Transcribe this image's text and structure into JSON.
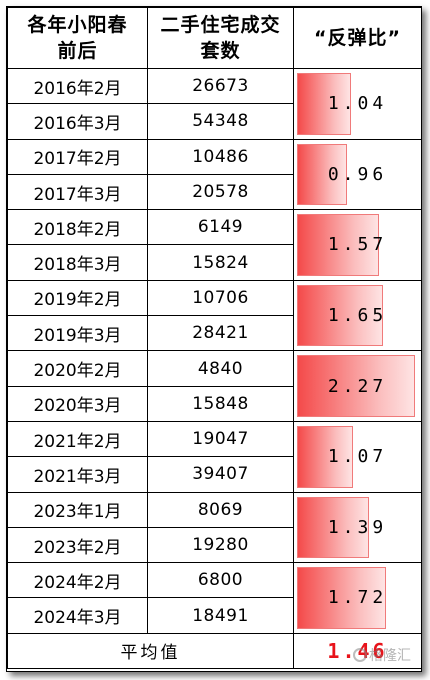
{
  "header": {
    "col1": "各年小阳春\n前后",
    "col2": "二手住宅成交\n套数",
    "col3": "“反弹比”"
  },
  "groups": [
    {
      "rows": [
        {
          "month": "2016年2月",
          "count": "26673"
        },
        {
          "month": "2016年3月",
          "count": "54348"
        }
      ],
      "ratio": "1.04",
      "ratio_value": 1.04
    },
    {
      "rows": [
        {
          "month": "2017年2月",
          "count": "10486"
        },
        {
          "month": "2017年3月",
          "count": "20578"
        }
      ],
      "ratio": "0.96",
      "ratio_value": 0.96
    },
    {
      "rows": [
        {
          "month": "2018年2月",
          "count": "6149"
        },
        {
          "month": "2018年3月",
          "count": "15824"
        }
      ],
      "ratio": "1.57",
      "ratio_value": 1.57
    },
    {
      "rows": [
        {
          "month": "2019年2月",
          "count": "10706"
        },
        {
          "month": "2019年3月",
          "count": "28421"
        }
      ],
      "ratio": "1.65",
      "ratio_value": 1.65
    },
    {
      "rows": [
        {
          "month": "2020年2月",
          "count": "4840"
        },
        {
          "month": "2020年3月",
          "count": "15848"
        }
      ],
      "ratio": "2.27",
      "ratio_value": 2.27
    },
    {
      "rows": [
        {
          "month": "2021年2月",
          "count": "19047"
        },
        {
          "month": "2021年3月",
          "count": "39407"
        }
      ],
      "ratio": "1.07",
      "ratio_value": 1.07
    },
    {
      "rows": [
        {
          "month": "2023年1月",
          "count": "8069"
        },
        {
          "month": "2023年2月",
          "count": "19280"
        }
      ],
      "ratio": "1.39",
      "ratio_value": 1.39
    },
    {
      "rows": [
        {
          "month": "2024年2月",
          "count": "6800"
        },
        {
          "month": "2024年3月",
          "count": "18491"
        }
      ],
      "ratio": "1.72",
      "ratio_value": 1.72
    }
  ],
  "footer": {
    "label": "平均值",
    "value": "1.46"
  },
  "bar_scale_max": 2.27,
  "colors": {
    "bar_start": "#f44a4a",
    "bar_end": "#fee4e4",
    "average_text": "#e8131a"
  },
  "watermark": {
    "text": "格隆汇",
    "icon": "gelonghui-logo-icon"
  }
}
